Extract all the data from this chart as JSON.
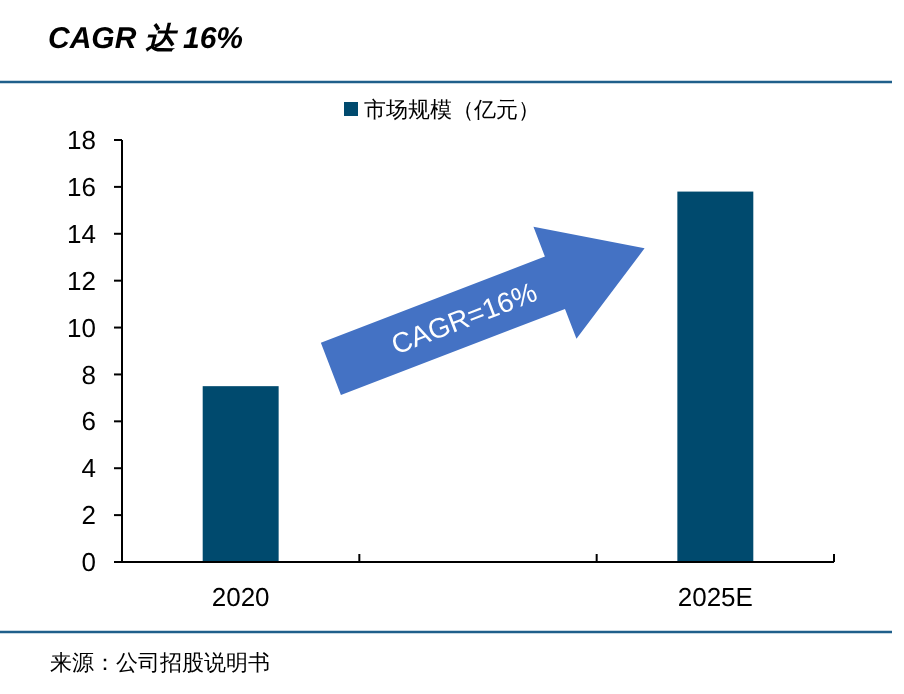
{
  "chart_data": {
    "type": "bar",
    "title": "CAGR 达 16%",
    "categories": [
      "2020",
      null,
      "2025E"
    ],
    "series": [
      {
        "name": "市场规模（亿元）",
        "color": "#004a6e",
        "values": [
          7.5,
          null,
          15.8
        ]
      }
    ],
    "ylim": [
      0,
      18
    ],
    "yticks": [
      0,
      2,
      4,
      6,
      8,
      10,
      12,
      14,
      16,
      18
    ],
    "grid": false,
    "legend": "top",
    "annotations": [
      "CAGR=16%",
      "来源：公司招股说明书"
    ]
  }
}
